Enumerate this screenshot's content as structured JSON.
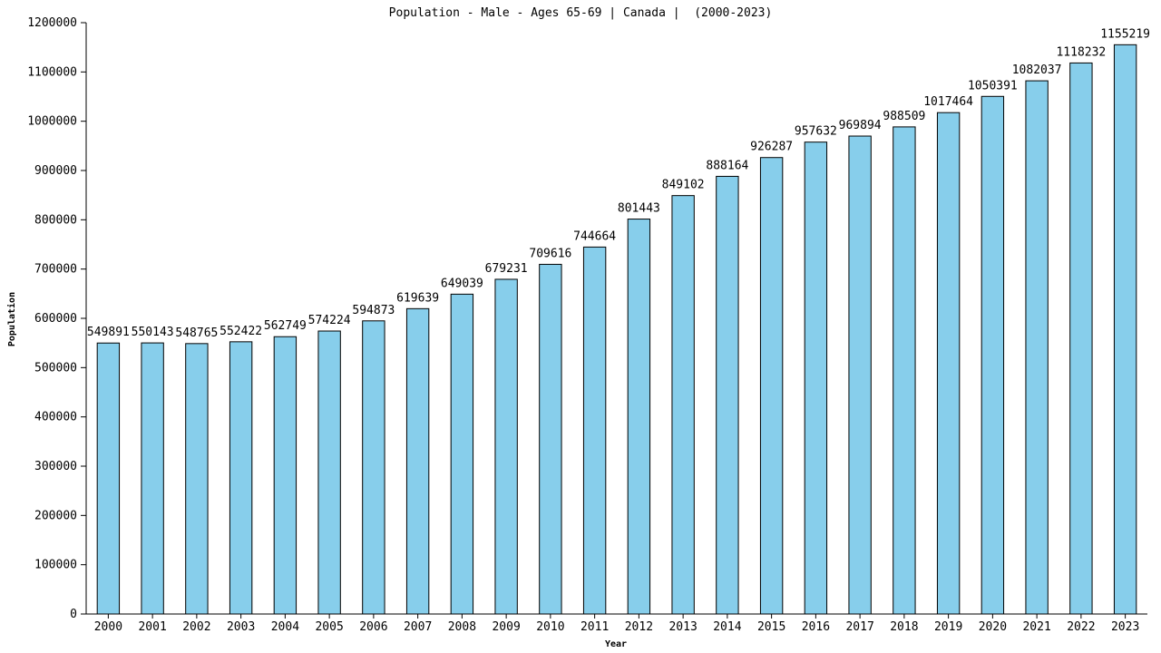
{
  "chart_data": {
    "type": "bar",
    "title": "Population - Male - Ages 65-69 | Canada |  (2000-2023)",
    "xlabel": "Year",
    "ylabel": "Population",
    "categories": [
      "2000",
      "2001",
      "2002",
      "2003",
      "2004",
      "2005",
      "2006",
      "2007",
      "2008",
      "2009",
      "2010",
      "2011",
      "2012",
      "2013",
      "2014",
      "2015",
      "2016",
      "2017",
      "2018",
      "2019",
      "2020",
      "2021",
      "2022",
      "2023"
    ],
    "values": [
      549891,
      550143,
      548765,
      552422,
      562749,
      574224,
      594873,
      619639,
      649039,
      679231,
      709616,
      744664,
      801443,
      849102,
      888164,
      926287,
      957632,
      969894,
      988509,
      1017464,
      1050391,
      1082037,
      1118232,
      1155219
    ],
    "ylim": [
      0,
      1200000
    ],
    "yticks": [
      0,
      100000,
      200000,
      300000,
      400000,
      500000,
      600000,
      700000,
      800000,
      900000,
      1000000,
      1100000,
      1200000
    ],
    "bar_color": "#87ceeb",
    "grid": false,
    "legend": "none"
  }
}
